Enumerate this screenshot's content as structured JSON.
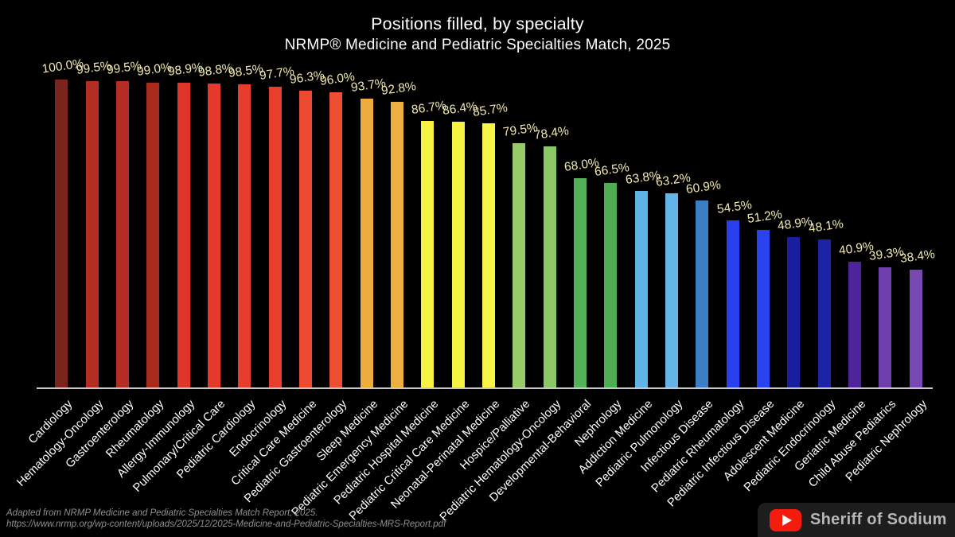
{
  "title": "Positions filled, by specialty",
  "subtitle": "NRMP® Medicine and Pediatric Specialties Match, 2025",
  "footer": {
    "line1": "Adapted from NRMP Medicine and Pediatric Specialties Match Report, 2025.",
    "line2": "https://www.nrmp.org/wp-content/uploads/2025/12/2025-Medicine-and-Pediatric-Specialties-MRS-Report.pdf"
  },
  "watermark": {
    "channel": "Sheriff of Sodium",
    "icon": "youtube-play-icon",
    "brand_color": "#f61c0d"
  },
  "colors": {
    "background": "#000000",
    "title_text": "#ffffff",
    "value_label": "#f2e9ae",
    "category_label": "#ffffff",
    "axis": "#c9c9c9",
    "footer_text": "#8f8f8f",
    "watermark_text": "#b6b6b6"
  },
  "chart_data": {
    "type": "bar",
    "title": "Positions filled, by specialty",
    "subtitle": "NRMP® Medicine and Pediatric Specialties Match, 2025",
    "unit": "%",
    "ylim": [
      0,
      100
    ],
    "grid": false,
    "value_labels_shown": true,
    "categories": [
      "Cardiology",
      "Hematology-Oncology",
      "Gastroenterology",
      "Rheumatology",
      "Allergy-Immunology",
      "Pulmonary/Critical Care",
      "Pediatric Cardiology",
      "Endocrinology",
      "Critical Care Medicine",
      "Pediatric Gastroenterology",
      "Sleep Medicine",
      "Pediatric Emergency Medicine",
      "Pediatric Hospital Medicine",
      "Pediatric Critical Care Medicine",
      "Neonatal-Perinatal Medicine",
      "Hospice/Palliative",
      "Pediatric Hematology-Oncology",
      "Developmental-Behavioral",
      "Nephrology",
      "Addiction Medicine",
      "Pediatric Pulmonology",
      "Infectious Disease",
      "Pediatric Rheumatology",
      "Pediatric Infectious Disease",
      "Adolescent Medicine",
      "Pediatric Endocrinology",
      "Geriatric Medicine",
      "Child Abuse Pediatrics",
      "Pediatric Nephrology"
    ],
    "values": [
      100.0,
      99.5,
      99.5,
      99.0,
      98.9,
      98.8,
      98.5,
      97.7,
      96.3,
      96.0,
      93.7,
      92.8,
      86.7,
      86.4,
      85.7,
      79.5,
      78.4,
      68.0,
      66.5,
      63.8,
      63.2,
      60.9,
      54.5,
      51.2,
      48.9,
      48.1,
      40.9,
      39.3,
      38.4
    ],
    "bar_colors": [
      "#7b241d",
      "#b32d23",
      "#b32d23",
      "#a92b20",
      "#de3628",
      "#e4392b",
      "#e73d2c",
      "#e83f2d",
      "#ed4a31",
      "#ef4e30",
      "#eeac3e",
      "#efae40",
      "#f7f342",
      "#f8f443",
      "#f8f546",
      "#98cb67",
      "#8cc765",
      "#53b158",
      "#4fae54",
      "#60b3e7",
      "#63b5e8",
      "#3c7dc4",
      "#2840ee",
      "#2a43ef",
      "#191da0",
      "#1c23a7",
      "#4f2399",
      "#6f3fab",
      "#7a48b2"
    ]
  }
}
